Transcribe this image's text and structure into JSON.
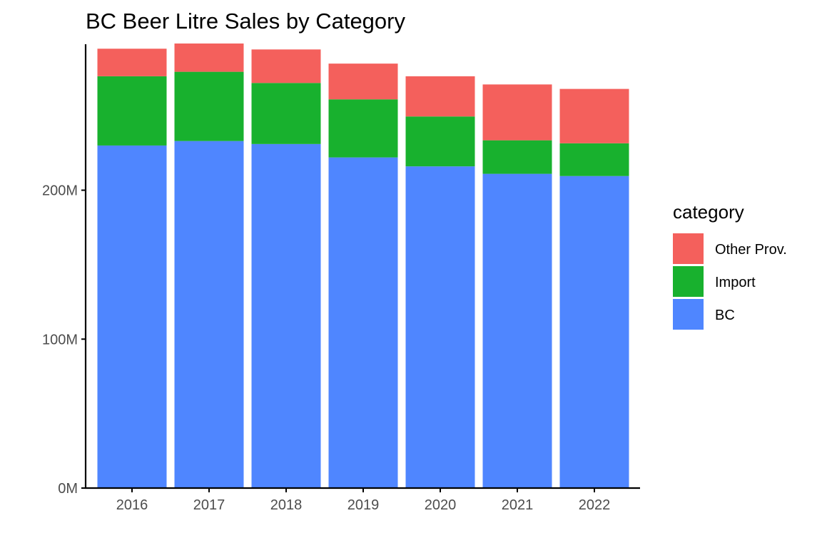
{
  "chart_data": {
    "type": "bar",
    "stacked": true,
    "title": "BC Beer Litre Sales by Category",
    "xlabel": "",
    "ylabel": "",
    "categories": [
      "2016",
      "2017",
      "2018",
      "2019",
      "2020",
      "2021",
      "2022"
    ],
    "series": [
      {
        "name": "BC",
        "color": "#4F86FF",
        "values": [
          230000000,
          233000000,
          231000000,
          222000000,
          216000000,
          211000000,
          209500000
        ]
      },
      {
        "name": "Import",
        "color": "#18B12E",
        "values": [
          46500000,
          46500000,
          41000000,
          39000000,
          33500000,
          22500000,
          22000000
        ]
      },
      {
        "name": "Other Prov.",
        "color": "#F4605C",
        "values": [
          18500000,
          19000000,
          22500000,
          24000000,
          27000000,
          37500000,
          36500000
        ]
      }
    ],
    "yticks": [
      0,
      100000000,
      200000000
    ],
    "ytick_labels": [
      "0M",
      "100M",
      "200M"
    ],
    "ylim": [
      0,
      298000000
    ],
    "legend": {
      "title": "category",
      "placement": "right",
      "items": [
        "Other Prov.",
        "Import",
        "BC"
      ]
    },
    "grid": false
  }
}
